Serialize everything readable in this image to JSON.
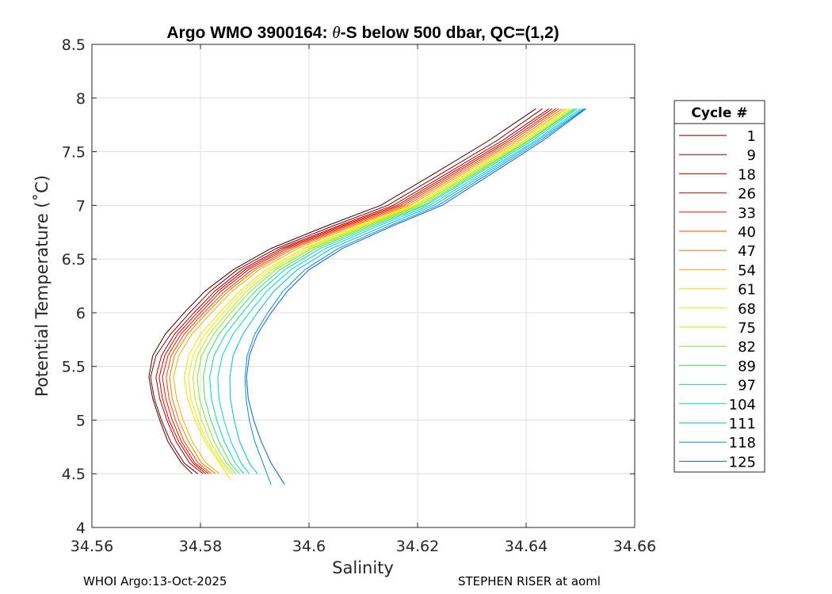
{
  "chart_data": {
    "type": "line",
    "title_prefix": "Argo WMO 3900164: ",
    "title_symbol": "θ",
    "title_suffix": "-S below 500 dbar,  QC=(1,2)",
    "xlabel": "Salinity",
    "ylabel": "Potential Temperature (˚C)",
    "xlim": [
      34.56,
      34.66
    ],
    "ylim": [
      4,
      8.5
    ],
    "xticks": [
      34.56,
      34.58,
      34.6,
      34.62,
      34.64,
      34.66
    ],
    "xtick_labels": [
      "34.56",
      "34.58",
      "34.6",
      "34.62",
      "34.64",
      "34.66"
    ],
    "yticks": [
      4,
      4.5,
      5,
      5.5,
      6,
      6.5,
      7,
      7.5,
      8,
      8.5
    ],
    "ytick_labels": [
      "4",
      "4.5",
      "5",
      "5.5",
      "6",
      "6.5",
      "7",
      "7.5",
      "8",
      "8.5"
    ],
    "grid": true,
    "legend_title": "Cycle #",
    "legend_placement": "right-outside",
    "series": [
      {
        "name": "1",
        "color": "#4a0000",
        "x": [
          34.5785,
          34.5765,
          34.574,
          34.5725,
          34.5712,
          34.5705,
          34.5712,
          34.5735,
          34.577,
          34.5808,
          34.586,
          34.593,
          34.6028,
          34.6132,
          34.6232,
          34.633,
          34.6418
        ],
        "y": [
          4.5,
          4.6,
          4.8,
          5.0,
          5.2,
          5.4,
          5.6,
          5.8,
          6.0,
          6.2,
          6.4,
          6.6,
          6.8,
          7.0,
          7.3,
          7.6,
          7.9
        ]
      },
      {
        "name": "9",
        "color": "#800000",
        "x": [
          34.5795,
          34.577,
          34.5745,
          34.5728,
          34.5715,
          34.5708,
          34.5718,
          34.5745,
          34.578,
          34.5818,
          34.5868,
          34.594,
          34.604,
          34.6145,
          34.6245,
          34.6345,
          34.643
        ],
        "y": [
          4.5,
          4.6,
          4.8,
          5.0,
          5.2,
          5.4,
          5.6,
          5.8,
          6.0,
          6.2,
          6.4,
          6.6,
          6.8,
          7.0,
          7.3,
          7.6,
          7.9
        ]
      },
      {
        "name": "18",
        "color": "#b00000",
        "x": [
          34.5805,
          34.578,
          34.5755,
          34.5738,
          34.5725,
          34.5718,
          34.5728,
          34.5752,
          34.5788,
          34.5826,
          34.5876,
          34.5948,
          34.605,
          34.6155,
          34.6255,
          34.6355,
          34.6442
        ],
        "y": [
          4.5,
          4.6,
          4.8,
          5.0,
          5.2,
          5.4,
          5.6,
          5.8,
          6.0,
          6.2,
          6.4,
          6.6,
          6.8,
          7.0,
          7.3,
          7.6,
          7.9
        ]
      },
      {
        "name": "26",
        "color": "#d80000",
        "x": [
          34.581,
          34.5786,
          34.576,
          34.5742,
          34.573,
          34.5724,
          34.5734,
          34.5758,
          34.5794,
          34.5832,
          34.5882,
          34.5954,
          34.6056,
          34.6162,
          34.6262,
          34.6362,
          34.6448
        ],
        "y": [
          4.5,
          4.6,
          4.8,
          5.0,
          5.2,
          5.4,
          5.6,
          5.8,
          6.0,
          6.2,
          6.4,
          6.6,
          6.8,
          7.0,
          7.3,
          7.6,
          7.9
        ]
      },
      {
        "name": "33",
        "color": "#f01000",
        "x": [
          34.5815,
          34.579,
          34.5765,
          34.5748,
          34.5736,
          34.573,
          34.574,
          34.5764,
          34.58,
          34.5838,
          34.5888,
          34.596,
          34.6062,
          34.6168,
          34.6268,
          34.6368,
          34.6455
        ],
        "y": [
          4.5,
          4.6,
          4.8,
          5.0,
          5.2,
          5.4,
          5.6,
          5.8,
          6.0,
          6.2,
          6.4,
          6.6,
          6.8,
          7.0,
          7.3,
          7.6,
          7.9
        ]
      },
      {
        "name": "40",
        "color": "#ff4400",
        "x": [
          34.582,
          34.5796,
          34.577,
          34.5754,
          34.5742,
          34.5737,
          34.5746,
          34.577,
          34.5806,
          34.5845,
          34.5895,
          34.5966,
          34.6068,
          34.6174,
          34.6274,
          34.6374,
          34.646
        ],
        "y": [
          4.5,
          4.6,
          4.8,
          5.0,
          5.2,
          5.4,
          5.6,
          5.8,
          6.0,
          6.2,
          6.4,
          6.6,
          6.8,
          7.0,
          7.3,
          7.6,
          7.9
        ]
      },
      {
        "name": "47",
        "color": "#ff7700",
        "x": [
          34.5828,
          34.5802,
          34.5778,
          34.576,
          34.5748,
          34.5743,
          34.5752,
          34.5776,
          34.5812,
          34.5851,
          34.5901,
          34.5972,
          34.6074,
          34.618,
          34.628,
          34.638,
          34.6466
        ],
        "y": [
          4.5,
          4.6,
          4.8,
          5.0,
          5.2,
          5.4,
          5.6,
          5.8,
          6.0,
          6.2,
          6.4,
          6.6,
          6.8,
          7.0,
          7.3,
          7.6,
          7.9
        ]
      },
      {
        "name": "54",
        "color": "#ffaa00",
        "x": [
          34.5835,
          34.581,
          34.5785,
          34.5768,
          34.5756,
          34.575,
          34.576,
          34.5784,
          34.582,
          34.5858,
          34.5908,
          34.598,
          34.608,
          34.6186,
          34.6286,
          34.6386,
          34.6472
        ],
        "y": [
          4.5,
          4.6,
          4.8,
          5.0,
          5.2,
          5.4,
          5.6,
          5.8,
          6.0,
          6.2,
          6.4,
          6.6,
          6.8,
          7.0,
          7.3,
          7.6,
          7.9
        ]
      },
      {
        "name": "61",
        "color": "#ffdd00",
        "x": [
          34.5855,
          34.5835,
          34.5808,
          34.579,
          34.5776,
          34.577,
          34.5778,
          34.58,
          34.5835,
          34.5872,
          34.592,
          34.599,
          34.6088,
          34.6192,
          34.6292,
          34.639,
          34.6476
        ],
        "y": [
          4.45,
          4.6,
          4.8,
          5.0,
          5.2,
          5.4,
          5.6,
          5.8,
          6.0,
          6.2,
          6.4,
          6.6,
          6.8,
          7.0,
          7.3,
          7.6,
          7.9
        ]
      },
      {
        "name": "68",
        "color": "#e8ee00",
        "x": [
          34.5855,
          34.5838,
          34.5812,
          34.5795,
          34.5782,
          34.5778,
          34.5786,
          34.5808,
          34.5842,
          34.5878,
          34.5926,
          34.5995,
          34.6093,
          34.6196,
          34.6296,
          34.6394,
          34.648
        ],
        "y": [
          4.5,
          4.6,
          4.8,
          5.0,
          5.2,
          5.4,
          5.6,
          5.8,
          6.0,
          6.2,
          6.4,
          6.6,
          6.8,
          7.0,
          7.3,
          7.6,
          7.9
        ]
      },
      {
        "name": "75",
        "color": "#b8ee10",
        "x": [
          34.586,
          34.5842,
          34.5818,
          34.5802,
          34.579,
          34.5786,
          34.5794,
          34.5816,
          34.5849,
          34.5885,
          34.5932,
          34.6001,
          34.6098,
          34.62,
          34.63,
          34.6398,
          34.6484
        ],
        "y": [
          4.5,
          4.6,
          4.8,
          5.0,
          5.2,
          5.4,
          5.6,
          5.8,
          6.0,
          6.2,
          6.4,
          6.6,
          6.8,
          7.0,
          7.3,
          7.6,
          7.9
        ]
      },
      {
        "name": "82",
        "color": "#80e830",
        "x": [
          34.5865,
          34.5848,
          34.5825,
          34.581,
          34.5798,
          34.5794,
          34.5802,
          34.5824,
          34.5856,
          34.5892,
          34.5938,
          34.6006,
          34.6103,
          34.6204,
          34.6304,
          34.6402,
          34.6488
        ],
        "y": [
          4.5,
          4.6,
          4.8,
          5.0,
          5.2,
          5.4,
          5.6,
          5.8,
          6.0,
          6.2,
          6.4,
          6.6,
          6.8,
          7.0,
          7.3,
          7.6,
          7.9
        ]
      },
      {
        "name": "89",
        "color": "#40e060",
        "x": [
          34.5872,
          34.5855,
          34.5834,
          34.5819,
          34.5808,
          34.5805,
          34.5813,
          34.5834,
          34.5866,
          34.5901,
          34.5946,
          34.6013,
          34.6109,
          34.621,
          34.6308,
          34.6405,
          34.649
        ],
        "y": [
          4.5,
          4.6,
          4.8,
          5.0,
          5.2,
          5.4,
          5.6,
          5.8,
          6.0,
          6.2,
          6.4,
          6.6,
          6.8,
          7.0,
          7.3,
          7.6,
          7.9
        ]
      },
      {
        "name": "97",
        "color": "#10d8a0",
        "x": [
          34.588,
          34.5864,
          34.5844,
          34.583,
          34.582,
          34.5817,
          34.5825,
          34.5846,
          34.5877,
          34.591,
          34.5955,
          34.6021,
          34.6116,
          34.6215,
          34.6313,
          34.641,
          34.6494
        ],
        "y": [
          4.5,
          4.6,
          4.8,
          5.0,
          5.2,
          5.4,
          5.6,
          5.8,
          6.0,
          6.2,
          6.4,
          6.6,
          6.8,
          7.0,
          7.3,
          7.6,
          7.9
        ]
      },
      {
        "name": "104",
        "color": "#00d8d8",
        "x": [
          34.589,
          34.5875,
          34.5856,
          34.5843,
          34.5834,
          34.5832,
          34.584,
          34.586,
          34.589,
          34.5922,
          34.5966,
          34.6031,
          34.6124,
          34.6222,
          34.632,
          34.6416,
          34.65
        ],
        "y": [
          4.5,
          4.6,
          4.8,
          5.0,
          5.2,
          5.4,
          5.6,
          5.8,
          6.0,
          6.2,
          6.4,
          6.6,
          6.8,
          7.0,
          7.3,
          7.6,
          7.9
        ]
      },
      {
        "name": "111",
        "color": "#00b8ee",
        "x": [
          34.5905,
          34.589,
          34.5872,
          34.5862,
          34.5855,
          34.5854,
          34.586,
          34.5878,
          34.5905,
          34.5935,
          34.5978,
          34.6042,
          34.6134,
          34.623,
          34.6326,
          34.642,
          34.6505
        ],
        "y": [
          4.5,
          4.6,
          4.8,
          5.0,
          5.2,
          5.4,
          5.6,
          5.8,
          6.0,
          6.2,
          6.4,
          6.6,
          6.8,
          7.0,
          7.3,
          7.6,
          7.9
        ]
      },
      {
        "name": "118",
        "color": "#0090e0",
        "x": [
          34.593,
          34.5915,
          34.59,
          34.589,
          34.5884,
          34.5882,
          34.5886,
          34.59,
          34.5924,
          34.5952,
          34.5992,
          34.6054,
          34.6144,
          34.6238,
          34.6332,
          34.6425,
          34.6508
        ],
        "y": [
          4.4,
          4.6,
          4.8,
          5.0,
          5.2,
          5.4,
          5.6,
          5.8,
          6.0,
          6.2,
          6.4,
          6.6,
          6.8,
          7.0,
          7.3,
          7.6,
          7.9
        ]
      },
      {
        "name": "125",
        "color": "#1060e0",
        "x": [
          34.5955,
          34.593,
          34.5912,
          34.5898,
          34.5888,
          34.5885,
          34.589,
          34.5905,
          34.593,
          34.596,
          34.6,
          34.6062,
          34.615,
          34.6245,
          34.6338,
          34.643,
          34.651
        ],
        "y": [
          4.4,
          4.6,
          4.8,
          5.0,
          5.2,
          5.4,
          5.6,
          5.8,
          6.0,
          6.2,
          6.4,
          6.6,
          6.8,
          7.0,
          7.3,
          7.6,
          7.9
        ]
      }
    ]
  },
  "footer": {
    "left": "WHOI Argo:13-Oct-2025",
    "right": "STEPHEN RISER at aoml"
  }
}
